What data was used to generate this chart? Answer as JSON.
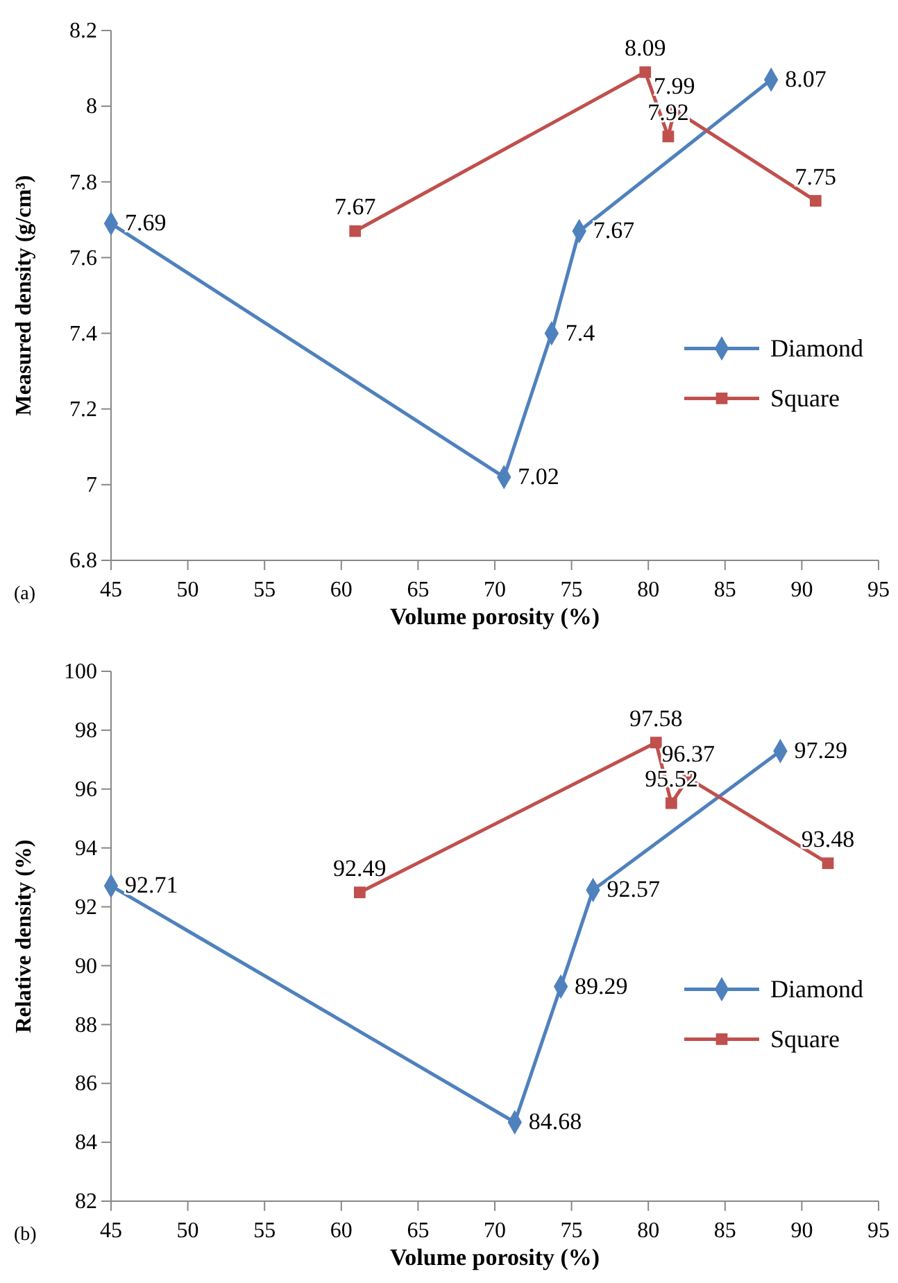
{
  "chart_data": [
    {
      "type": "line",
      "xlabel": "Volume porosity (%)",
      "ylabel": "Measured density (g/cm³)",
      "xlim": [
        45,
        95
      ],
      "xticks": [
        45,
        50,
        55,
        60,
        65,
        70,
        75,
        80,
        85,
        90,
        95
      ],
      "ylim": [
        6.8,
        8.2
      ],
      "yticks": [
        6.8,
        7,
        7.2,
        7.4,
        7.6,
        7.8,
        8,
        8.2
      ],
      "grid": false,
      "legend": "right",
      "data_labels": true,
      "annotations": [
        "(a)"
      ],
      "series": [
        {
          "name": "Diamond",
          "color": "#4f81bd",
          "marker": "diamond",
          "x": [
            45,
            70.6,
            73.7,
            75.5,
            88
          ],
          "values": [
            7.69,
            7.02,
            7.4,
            7.67,
            8.07
          ]
        },
        {
          "name": "Square",
          "color": "#c0504d",
          "marker": "square",
          "x": [
            60.9,
            79.8,
            81.3,
            81.7,
            90.9
          ],
          "values": [
            7.67,
            8.09,
            7.92,
            7.99,
            7.75
          ]
        }
      ]
    },
    {
      "type": "line",
      "xlabel": "Volume porosity (%)",
      "ylabel": "Relative density (%)",
      "xlim": [
        45,
        95
      ],
      "xticks": [
        45,
        50,
        55,
        60,
        65,
        70,
        75,
        80,
        85,
        90,
        95
      ],
      "ylim": [
        82,
        100
      ],
      "yticks": [
        82,
        84,
        86,
        88,
        90,
        92,
        94,
        96,
        98,
        100
      ],
      "grid": false,
      "legend": "right",
      "data_labels": true,
      "annotations": [
        "(b)"
      ],
      "series": [
        {
          "name": "Diamond",
          "color": "#4f81bd",
          "marker": "diamond",
          "x": [
            45,
            71.3,
            74.3,
            76.4,
            88.6
          ],
          "values": [
            92.71,
            84.68,
            89.29,
            92.57,
            97.29
          ]
        },
        {
          "name": "Square",
          "color": "#c0504d",
          "marker": "square",
          "x": [
            61.2,
            80.5,
            81.5,
            82.6,
            91.7
          ],
          "values": [
            92.49,
            97.58,
            95.52,
            96.37,
            93.48
          ]
        }
      ]
    }
  ]
}
